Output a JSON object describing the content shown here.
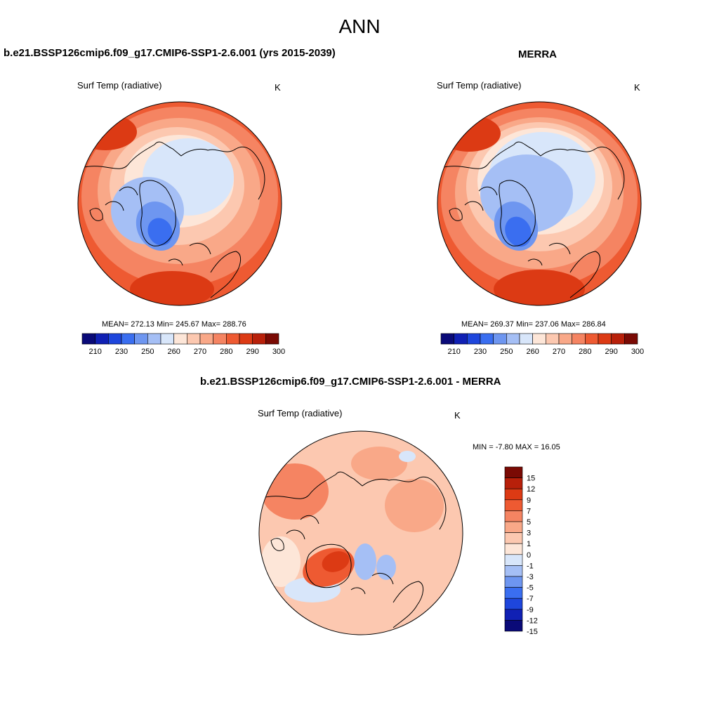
{
  "figure": {
    "title": "ANN"
  },
  "panels": {
    "model": {
      "title": "b.e21.BSSP126cmip6.f09_g17.CMIP6-SSP1-2.6.001 (yrs 2015-2039)",
      "variable": "Surf Temp (radiative)",
      "units": "K",
      "stats": "MEAN= 272.13  Min= 245.67  Max= 288.76"
    },
    "obs": {
      "title": "MERRA",
      "variable": "Surf Temp (radiative)",
      "units": "K",
      "stats": "MEAN= 269.37  Min= 237.06  Max= 286.84"
    },
    "diff": {
      "title": "b.e21.BSSP126cmip6.f09_g17.CMIP6-SSP1-2.6.001 - MERRA",
      "variable": "Surf Temp (radiative)",
      "units": "K",
      "stats": "MIN =  -7.80 MAX =  16.05"
    }
  },
  "colorbars": {
    "abs": {
      "colors": [
        "#0a0a78",
        "#1020b4",
        "#1e46dc",
        "#3a6ef0",
        "#6e96f0",
        "#a5bff5",
        "#d8e6fa",
        "#fde6d8",
        "#fcc8b0",
        "#f9a888",
        "#f58462",
        "#ee5a32",
        "#dc3a14",
        "#b8200a",
        "#7a0a04"
      ],
      "tick_labels": [
        "210",
        "230",
        "250",
        "260",
        "270",
        "280",
        "290",
        "300"
      ]
    },
    "diff": {
      "colors": [
        "#7a0a04",
        "#b8200a",
        "#dc3a14",
        "#ee5a32",
        "#f58462",
        "#f9a888",
        "#fcc8b0",
        "#fde6d8",
        "#d8e6fa",
        "#a5bff5",
        "#6e96f0",
        "#3a6ef0",
        "#1e46dc",
        "#1020b4",
        "#0a0a78"
      ],
      "tick_labels": [
        "15",
        "12",
        "9",
        "7",
        "5",
        "3",
        "1",
        "0",
        "-1",
        "-3",
        "-5",
        "-7",
        "-9",
        "-12",
        "-15"
      ]
    }
  }
}
